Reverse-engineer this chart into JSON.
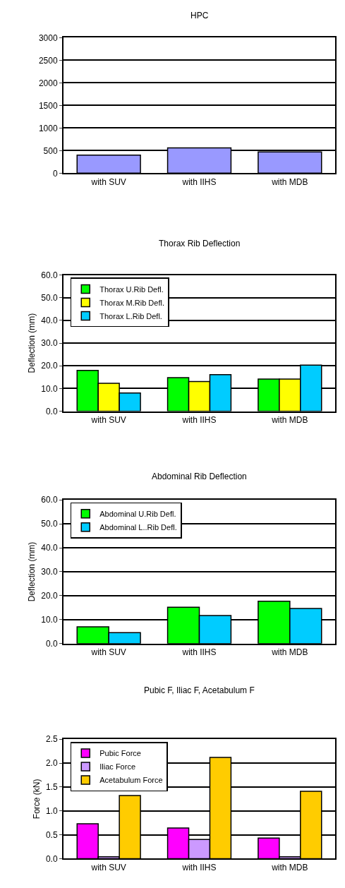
{
  "chart_data": [
    {
      "type": "bar",
      "title": "HPC",
      "categories": [
        "with SUV",
        "with IIHS",
        "with MDB"
      ],
      "series": [
        {
          "color": "#9999ff",
          "values": [
            400,
            560,
            470
          ]
        }
      ],
      "ylim": [
        0,
        3000
      ],
      "yticks": [
        0,
        500,
        1000,
        1500,
        2000,
        2500,
        3000
      ],
      "grid": "y",
      "legend": false
    },
    {
      "type": "bar",
      "title": "Thorax Rib Deflection",
      "ylabel": "Deflection (mm)",
      "categories": [
        "with SUV",
        "with IIHS",
        "with MDB"
      ],
      "series": [
        {
          "name": "Thorax U.Rib Defl.",
          "color": "#00ff00",
          "values": [
            18.0,
            14.8,
            14.2
          ]
        },
        {
          "name": "Thorax M.Rib Defl.",
          "color": "#ffff00",
          "values": [
            12.3,
            13.1,
            14.2
          ]
        },
        {
          "name": "Thorax L.Rib Defl.",
          "color": "#00ccff",
          "values": [
            8.0,
            16.1,
            20.3
          ]
        }
      ],
      "ylim": [
        0,
        60
      ],
      "yticks": [
        {
          "value": 0,
          "label": "0.0"
        },
        {
          "value": 10,
          "label": "10.0"
        },
        {
          "value": 20,
          "label": "20.0"
        },
        {
          "value": 30,
          "label": "30.0"
        },
        {
          "value": 40,
          "label": "40.0"
        },
        {
          "value": 50,
          "label": "50.0"
        },
        {
          "value": 60,
          "label": "60.0"
        }
      ],
      "grid": "y",
      "legend": "top left"
    },
    {
      "type": "bar",
      "title": "Abdominal Rib Deflection",
      "ylabel": "Deflection (mm)",
      "categories": [
        "with SUV",
        "with IIHS",
        "with MDB"
      ],
      "series": [
        {
          "name": "Abdominal U.Rib Defl.",
          "color": "#00ff00",
          "values": [
            7.0,
            15.2,
            17.7
          ]
        },
        {
          "name": "Abdominal L..Rib Defl.",
          "color": "#00ccff",
          "values": [
            4.6,
            11.7,
            14.7
          ]
        }
      ],
      "ylim": [
        0,
        60
      ],
      "yticks": [
        {
          "value": 0,
          "label": "0.0"
        },
        {
          "value": 10,
          "label": "10.0"
        },
        {
          "value": 20,
          "label": "20.0"
        },
        {
          "value": 30,
          "label": "30.0"
        },
        {
          "value": 40,
          "label": "40.0"
        },
        {
          "value": 50,
          "label": "50.0"
        },
        {
          "value": 60,
          "label": "60.0"
        }
      ],
      "grid": "y",
      "legend": "top left"
    },
    {
      "type": "bar",
      "title": "Pubic F, Iliac F, Acetabulum F",
      "ylabel": "Force (kN)",
      "categories": [
        "with SUV",
        "with IIHS",
        "with MDB"
      ],
      "series": [
        {
          "name": "Pubic Force",
          "color": "#ff00ff",
          "values": [
            0.73,
            0.64,
            0.43
          ]
        },
        {
          "name": "Iliac Force",
          "color": "#cc99ff",
          "values": [
            0.04,
            0.4,
            0.04
          ]
        },
        {
          "name": "Acetabulum Force",
          "color": "#ffcc00",
          "values": [
            1.32,
            2.12,
            1.41
          ]
        }
      ],
      "ylim": [
        0,
        2.5
      ],
      "yticks": [
        {
          "value": 0,
          "label": "0.0"
        },
        {
          "value": 0.5,
          "label": "0.5"
        },
        {
          "value": 1,
          "label": "1.0"
        },
        {
          "value": 1.5,
          "label": "1.5"
        },
        {
          "value": 2,
          "label": "2.0"
        },
        {
          "value": 2.5,
          "label": "2.5"
        }
      ],
      "grid": "y",
      "legend": "top left"
    }
  ]
}
